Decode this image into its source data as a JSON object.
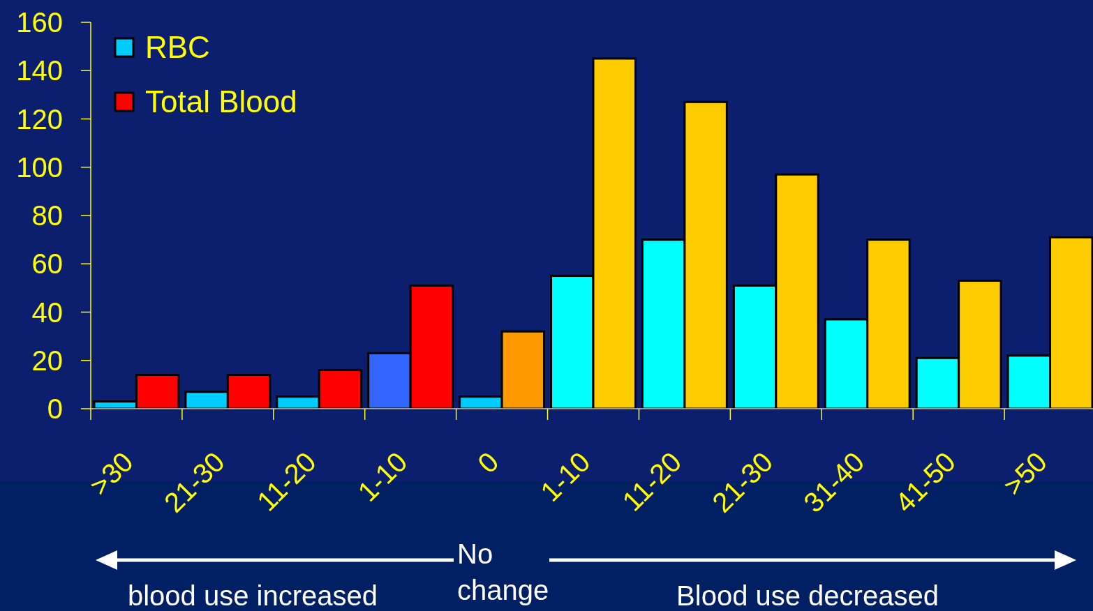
{
  "chart_data": {
    "type": "bar",
    "categories": [
      ">30",
      "21-30",
      "11-20",
      "1-10",
      "0",
      "1-10",
      "11-20",
      "21-30",
      "31-40",
      "41-50",
      ">50"
    ],
    "series": [
      {
        "name": "RBC",
        "color": "#00ccff",
        "colors": [
          "#00ccff",
          "#00ccff",
          "#00ccff",
          "#3366ff",
          "#00ccff",
          "#00ffff",
          "#00ffff",
          "#00ffff",
          "#00ffff",
          "#00ffff",
          "#00ffff"
        ],
        "values": [
          3,
          7,
          5,
          23,
          5,
          55,
          70,
          51,
          37,
          21,
          22
        ]
      },
      {
        "name": "Total Blood",
        "color": "#ff0000",
        "colors": [
          "#ff0000",
          "#ff0000",
          "#ff0000",
          "#ff0000",
          "#ff9900",
          "#ffcc00",
          "#ffcc00",
          "#ffcc00",
          "#ffcc00",
          "#ffcc00",
          "#ffcc00"
        ],
        "values": [
          14,
          14,
          16,
          51,
          32,
          145,
          127,
          97,
          70,
          53,
          71
        ]
      }
    ],
    "ylim": [
      0,
      160
    ],
    "yticks": [
      0,
      20,
      40,
      60,
      80,
      100,
      120,
      140,
      160
    ],
    "grid": false,
    "legend": "top left",
    "annotations": [
      "blood use increased",
      "No change",
      "Blood use decreased"
    ]
  }
}
